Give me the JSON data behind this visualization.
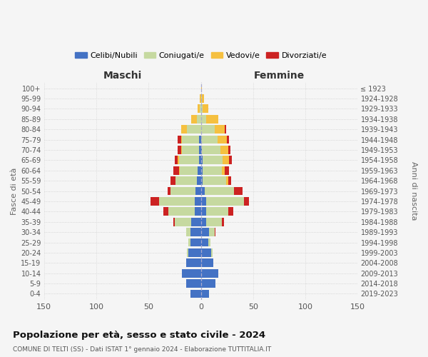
{
  "age_groups": [
    "0-4",
    "5-9",
    "10-14",
    "15-19",
    "20-24",
    "25-29",
    "30-34",
    "35-39",
    "40-44",
    "45-49",
    "50-54",
    "55-59",
    "60-64",
    "65-69",
    "70-74",
    "75-79",
    "80-84",
    "85-89",
    "90-94",
    "95-99",
    "100+"
  ],
  "birth_years": [
    "2019-2023",
    "2014-2018",
    "2009-2013",
    "2004-2008",
    "1999-2003",
    "1994-1998",
    "1989-1993",
    "1984-1988",
    "1979-1983",
    "1974-1978",
    "1969-1973",
    "1964-1968",
    "1959-1963",
    "1954-1958",
    "1949-1953",
    "1944-1948",
    "1939-1943",
    "1934-1938",
    "1929-1933",
    "1924-1928",
    "≤ 1923"
  ],
  "colors": {
    "celibi": "#4472c4",
    "coniugati": "#c6d9a0",
    "vedovi": "#f5c040",
    "divorziati": "#cc2222"
  },
  "legend_labels": [
    "Celibi/Nubili",
    "Coniugati/e",
    "Vedovi/e",
    "Divorziati/e"
  ],
  "maschi": {
    "celibi": [
      10,
      14,
      18,
      14,
      12,
      10,
      10,
      9,
      6,
      6,
      5,
      4,
      3,
      2,
      2,
      2,
      0,
      0,
      0,
      0,
      0
    ],
    "coniugati": [
      0,
      0,
      0,
      0,
      1,
      2,
      4,
      16,
      25,
      34,
      24,
      20,
      17,
      19,
      16,
      16,
      13,
      4,
      1,
      0,
      0
    ],
    "vedovi": [
      0,
      0,
      0,
      0,
      0,
      0,
      0,
      0,
      0,
      0,
      0,
      0,
      1,
      1,
      1,
      1,
      6,
      5,
      2,
      1,
      0
    ],
    "divorziati": [
      0,
      0,
      0,
      0,
      0,
      0,
      0,
      1,
      5,
      8,
      3,
      5,
      5,
      3,
      3,
      3,
      0,
      0,
      0,
      0,
      0
    ]
  },
  "femmine": {
    "nubili": [
      8,
      14,
      17,
      12,
      10,
      7,
      8,
      5,
      5,
      5,
      4,
      2,
      2,
      2,
      1,
      0,
      0,
      0,
      0,
      0,
      0
    ],
    "coniugate": [
      0,
      0,
      0,
      0,
      1,
      2,
      5,
      15,
      21,
      36,
      28,
      22,
      18,
      19,
      18,
      16,
      13,
      5,
      2,
      1,
      0
    ],
    "vedove": [
      0,
      0,
      0,
      0,
      0,
      0,
      0,
      0,
      0,
      0,
      0,
      2,
      3,
      6,
      7,
      9,
      10,
      12,
      5,
      2,
      1
    ],
    "divorziate": [
      0,
      0,
      0,
      0,
      0,
      0,
      1,
      2,
      5,
      5,
      8,
      3,
      4,
      3,
      2,
      2,
      1,
      0,
      0,
      0,
      0
    ]
  },
  "title": "Popolazione per età, sesso e stato civile - 2024",
  "subtitle": "COMUNE DI TELTI (SS) - Dati ISTAT 1° gennaio 2024 - Elaborazione TUTTITALIA.IT",
  "ylabel_left": "Fasce di età",
  "ylabel_right": "Anni di nascita",
  "xlabel_left": "Maschi",
  "xlabel_right": "Femmine",
  "xlim": 150,
  "background_color": "#f5f5f5"
}
